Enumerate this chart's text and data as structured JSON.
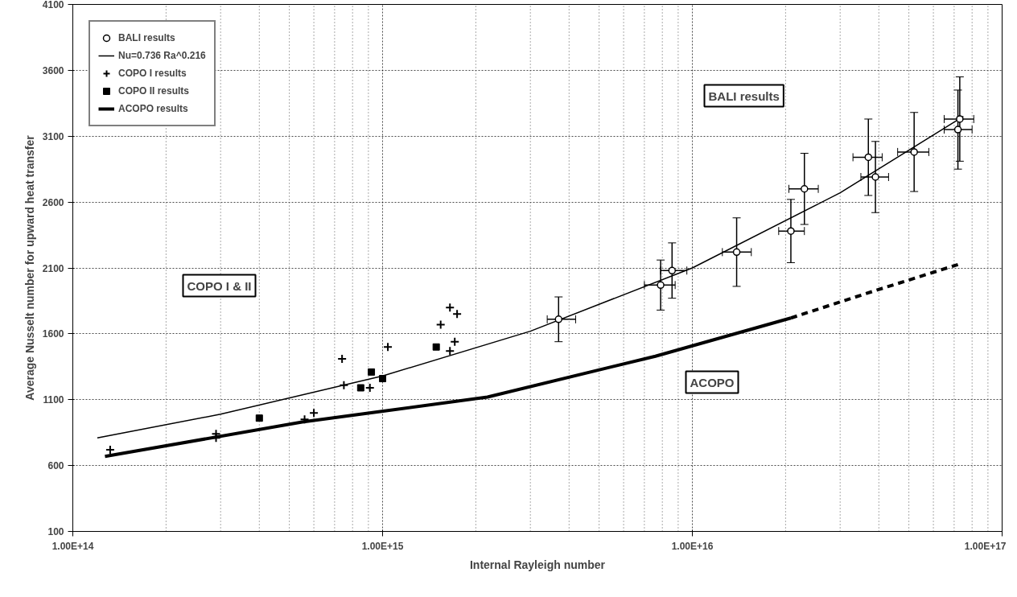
{
  "chart_data": {
    "type": "scatter",
    "xlabel": "Internal Rayleigh number",
    "ylabel": "Average Nusselt number for upward heat transfer",
    "log": "x",
    "xlim": [
      100000000000000.0,
      1e+17
    ],
    "xticks": [
      {
        "value": 100000000000000.0,
        "label": "1.00E+14"
      },
      {
        "value": 1000000000000000.0,
        "label": "1.00E+15"
      },
      {
        "value": 1e+16,
        "label": "1.00E+16"
      },
      {
        "value": 1e+17,
        "label": "1.00E+17"
      }
    ],
    "ylim": [
      100,
      4100
    ],
    "yticks": [
      100,
      600,
      1100,
      1600,
      2100,
      2600,
      3100,
      3600,
      4100
    ],
    "grid": true,
    "legend": "top left",
    "series": [
      {
        "name": "BALI results",
        "marker": "circle",
        "color": "#000000",
        "x": [
          3700000000000000.0,
          7900000000000000.0,
          8600000000000000.0,
          1.39e+16,
          2.08e+16,
          2.3e+16,
          3.7e+16,
          3.9e+16,
          5.2e+16,
          7.3e+16,
          7.2e+16
        ],
        "values": [
          1710,
          1970,
          2080,
          2220,
          2380,
          2700,
          2940,
          2790,
          2980,
          3230,
          3150
        ],
        "errors": [
          170,
          190,
          210,
          260,
          240,
          270,
          290,
          270,
          300,
          320,
          300
        ],
        "xerrors": [
          [
            3400000000000000.0,
            4200000000000000.0
          ],
          [
            7000000000000000.0,
            8800000000000000.0
          ],
          [
            7900000000000000.0,
            9600000000000000.0
          ],
          [
            1.25e+16,
            1.55e+16
          ],
          [
            1.9e+16,
            2.3e+16
          ],
          [
            2.05e+16,
            2.55e+16
          ],
          [
            3.3e+16,
            4.1e+16
          ],
          [
            3.5e+16,
            4.3e+16
          ],
          [
            4.6e+16,
            5.8e+16
          ],
          [
            6.5e+16,
            8.1e+16
          ],
          [
            6.5e+16,
            8e+16
          ]
        ]
      },
      {
        "name": "Nu=0.736 Ra^0.216",
        "type": "line",
        "line_style": "solid",
        "color": "#000000",
        "x": [
          120000000000000.0,
          300000000000000.0,
          1000000000000000.0,
          3000000000000000.0,
          1e+16,
          3e+16,
          7.5e+16
        ],
        "values": [
          810,
          990,
          1280,
          1620,
          2100,
          2670,
          3250
        ]
      },
      {
        "name": "COPO I results",
        "marker": "cross",
        "color": "#000000",
        "x": [
          132000000000000.0,
          290000000000000.0,
          290000000000000.0,
          560000000000000.0,
          600000000000000.0,
          750000000000000.0,
          740000000000000.0,
          910000000000000.0,
          1040000000000000.0,
          1540000000000000.0,
          1650000000000000.0,
          1740000000000000.0,
          1710000000000000.0,
          1650000000000000.0
        ],
        "values": [
          720,
          840,
          810,
          950,
          1000,
          1210,
          1410,
          1190,
          1500,
          1670,
          1800,
          1750,
          1540,
          1470
        ]
      },
      {
        "name": "COPO II results",
        "marker": "square",
        "color": "#000000",
        "x": [
          400000000000000.0,
          850000000000000.0,
          920000000000000.0,
          1000000000000000.0,
          1490000000000000.0
        ],
        "values": [
          960,
          1190,
          1310,
          1260,
          1500
        ]
      },
      {
        "name": "ACOPO results",
        "type": "line",
        "line_style": "solid",
        "color": "#000000",
        "x": [
          127000000000000.0,
          550000000000000.0,
          2180000000000000.0,
          7600000000000000.0,
          2.08e+16
        ],
        "values": [
          670,
          930,
          1120,
          1430,
          1720
        ]
      },
      {
        "type": "line",
        "line_style": "dashed",
        "color": "#000000",
        "x": [
          2.08e+16,
          3.8e+16,
          7.3e+16
        ],
        "values": [
          1720,
          1920,
          2130
        ]
      }
    ],
    "annotations": [
      "BALI results",
      "COPO I & II",
      "ACOPO"
    ]
  }
}
